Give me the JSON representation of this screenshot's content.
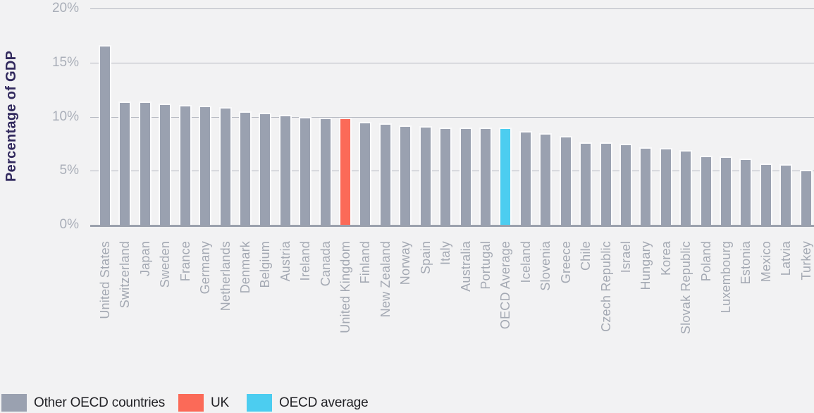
{
  "chart_data": {
    "type": "bar",
    "title": "",
    "xlabel": "",
    "ylabel": "Percentage of GDP",
    "ylim": [
      0,
      20
    ],
    "ytick_values": [
      0,
      5,
      10,
      15,
      20
    ],
    "ytick_labels": [
      "0%",
      "5%",
      "10%",
      "15%",
      "20%"
    ],
    "grid": true,
    "legend_position": "bottom",
    "categories": [
      "United States",
      "Switzerland",
      "Japan",
      "Sweden",
      "France",
      "Germany",
      "Netherlands",
      "Denmark",
      "Belgium",
      "Austria",
      "Ireland",
      "Canada",
      "United Kingdom",
      "Finland",
      "New Zealand",
      "Norway",
      "Spain",
      "Italy",
      "Australia",
      "Portugal",
      "OECD Average",
      "Iceland",
      "Slovenia",
      "Greece",
      "Chile",
      "Czech Republic",
      "Israel",
      "Hungary",
      "Korea",
      "Slovak Republic",
      "Poland",
      "Luxembourg",
      "Estonia",
      "Mexico",
      "Latvia",
      "Turkey"
    ],
    "values": [
      16.6,
      11.4,
      11.4,
      11.2,
      11.1,
      11.0,
      10.9,
      10.5,
      10.4,
      10.2,
      10.0,
      9.9,
      9.9,
      9.5,
      9.4,
      9.2,
      9.1,
      9.0,
      9.0,
      9.0,
      9.0,
      8.7,
      8.5,
      8.2,
      7.6,
      7.6,
      7.5,
      7.2,
      7.1,
      6.9,
      6.4,
      6.3,
      6.1,
      5.7,
      5.6,
      5.1
    ],
    "uk_category": "United Kingdom",
    "oecd_category": "OECD Average",
    "colors": {
      "other": "#9aa1b0",
      "uk": "#fb6a58",
      "oecd_average": "#4ccdf0",
      "gridline": "#b4b7c0",
      "axis_line": "#9ba1ad",
      "tick_text": "#a9aeb8",
      "category_text": "#a4a9b3",
      "y_title_text": "#322a5e",
      "background": "#f2f2f3"
    }
  },
  "legend": {
    "items": [
      {
        "key": "other",
        "label": "Other OECD countries",
        "color": "#9aa1b0"
      },
      {
        "key": "uk",
        "label": "UK",
        "color": "#fb6a58"
      },
      {
        "key": "oecd_average",
        "label": "OECD average",
        "color": "#4ccdf0"
      }
    ]
  }
}
